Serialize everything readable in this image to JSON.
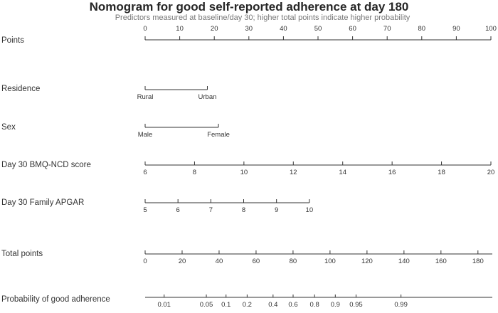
{
  "chart_data": {
    "type": "nomogram",
    "title": "Nomogram for good self-reported adherence at day 180",
    "subtitle": "Predictors measured at baseline/day 30; higher total points indicate higher probability",
    "rows": [
      {
        "label": "Points",
        "labels": [
          "0",
          "10",
          "20",
          "30",
          "40",
          "50",
          "60",
          "70",
          "80",
          "90",
          "100"
        ],
        "values": [
          0,
          10,
          20,
          30,
          40,
          50,
          60,
          70,
          80,
          90,
          100
        ],
        "min": 0,
        "max": 100,
        "tick_side": "above"
      },
      {
        "label": "Residence",
        "labels": [
          "Rural",
          "Urban"
        ],
        "values": [
          0,
          18
        ],
        "min": 0,
        "max": 100,
        "tick_side": "below"
      },
      {
        "label": "Sex",
        "labels": [
          "Male",
          "Female"
        ],
        "values": [
          0,
          21.2
        ],
        "min": 0,
        "max": 100,
        "tick_side": "below"
      },
      {
        "label": "Day 30 BMQ-NCD score",
        "labels": [
          "6",
          "8",
          "10",
          "12",
          "14",
          "16",
          "18",
          "20"
        ],
        "values": [
          6,
          8,
          10,
          12,
          14,
          16,
          18,
          20
        ],
        "min": 6,
        "max": 20,
        "tick_side": "below"
      },
      {
        "label": "Day 30 Family APGAR",
        "labels": [
          "5",
          "6",
          "7",
          "8",
          "9",
          "10"
        ],
        "values": [
          0,
          9.5,
          19,
          28.5,
          38,
          47.5
        ],
        "min": 0,
        "max": 100,
        "tick_side": "below"
      },
      {
        "label": "Total points",
        "labels": [
          "0",
          "20",
          "40",
          "60",
          "80",
          "100",
          "120",
          "140",
          "160",
          "180"
        ],
        "values": [
          0,
          20,
          40,
          60,
          80,
          100,
          120,
          140,
          160,
          180
        ],
        "min": 0,
        "max": 187,
        "tick_side": "below"
      },
      {
        "label": "Probability of good adherence",
        "labels": [
          "0.01",
          "0.05",
          "0.1",
          "0.2",
          "0.4",
          "0.6",
          "0.8",
          "0.9",
          "0.95",
          "0.99"
        ],
        "values": [
          5.5,
          17.7,
          23.4,
          29.5,
          37,
          42.8,
          49,
          55,
          61,
          74
        ],
        "min": 0,
        "max": 100,
        "tick_side": "below"
      }
    ]
  }
}
